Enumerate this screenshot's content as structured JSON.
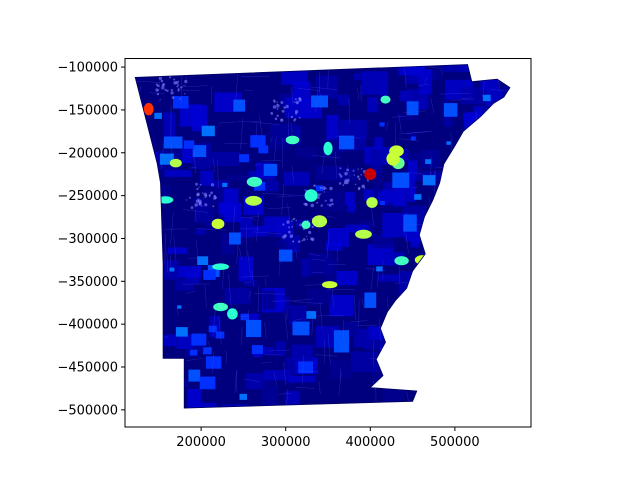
{
  "chart_data": {
    "type": "choropleth-map",
    "title": "",
    "xlabel": "",
    "ylabel": "",
    "xlim": [
      110000,
      590000
    ],
    "ylim": [
      -520000,
      -90000
    ],
    "x_ticks": [
      200000,
      300000,
      400000,
      500000
    ],
    "y_ticks": [
      -100000,
      -150000,
      -200000,
      -250000,
      -300000,
      -350000,
      -400000,
      -450000,
      -500000
    ],
    "x_tick_labels": [
      "200000",
      "300000",
      "400000",
      "500000"
    ],
    "y_tick_labels": [
      "−100000",
      "−150000",
      "−200000",
      "−250000",
      "−300000",
      "−350000",
      "−400000",
      "−450000",
      "−500000"
    ],
    "grid": false,
    "legend": "none",
    "colormap": "jet",
    "base_fill": "#00007f",
    "region_outline": [
      [
        122000,
        -112000
      ],
      [
        515000,
        -97000
      ],
      [
        520000,
        -117000
      ],
      [
        550000,
        -114000
      ],
      [
        565000,
        -124000
      ],
      [
        558000,
        -135000
      ],
      [
        546000,
        -142000
      ],
      [
        530000,
        -158000
      ],
      [
        510000,
        -175000
      ],
      [
        500000,
        -192000
      ],
      [
        487000,
        -213000
      ],
      [
        482000,
        -235000
      ],
      [
        474000,
        -255000
      ],
      [
        464000,
        -275000
      ],
      [
        458000,
        -296000
      ],
      [
        465000,
        -318000
      ],
      [
        450000,
        -338000
      ],
      [
        443000,
        -358000
      ],
      [
        430000,
        -372000
      ],
      [
        420000,
        -386000
      ],
      [
        412000,
        -405000
      ],
      [
        418000,
        -421000
      ],
      [
        407000,
        -441000
      ],
      [
        415000,
        -460000
      ],
      [
        400000,
        -474000
      ],
      [
        455000,
        -478000
      ],
      [
        450000,
        -490000
      ],
      [
        180000,
        -498000
      ],
      [
        180000,
        -440000
      ],
      [
        155000,
        -440000
      ],
      [
        155000,
        -330000
      ],
      [
        152000,
        -235000
      ],
      [
        148000,
        -212000
      ]
    ],
    "highlighted_areas": [
      {
        "x": 400000,
        "y": -225000,
        "color": "#c80000"
      },
      {
        "x": 138000,
        "y": -149000,
        "color": "#ff3000"
      },
      {
        "x": 402000,
        "y": -258000,
        "color": "#b4ff4a"
      },
      {
        "x": 220000,
        "y": -283000,
        "color": "#c8ff37"
      },
      {
        "x": 223000,
        "y": -333000,
        "color": "#29ffd0"
      },
      {
        "x": 462000,
        "y": -325000,
        "color": "#c8ff37"
      },
      {
        "x": 433000,
        "y": -212000,
        "color": "#66ff90"
      },
      {
        "x": 431000,
        "y": -198000,
        "color": "#c8ff37"
      },
      {
        "x": 262000,
        "y": -256000,
        "color": "#b4ff4a"
      },
      {
        "x": 263000,
        "y": -234000,
        "color": "#40ffc0"
      },
      {
        "x": 324000,
        "y": -284000,
        "color": "#40ffc0"
      },
      {
        "x": 352000,
        "y": -354000,
        "color": "#c8ff37"
      },
      {
        "x": 418000,
        "y": -138000,
        "color": "#40ffc0"
      },
      {
        "x": 223000,
        "y": -380000,
        "color": "#40ffc0"
      },
      {
        "x": 237000,
        "y": -388000,
        "color": "#29ffd0"
      },
      {
        "x": 142000,
        "y": -247000,
        "color": "#33ffcc"
      },
      {
        "x": 340000,
        "y": -280000,
        "color": "#b4ff4a"
      },
      {
        "x": 427000,
        "y": -207000,
        "color": "#c8ff37"
      },
      {
        "x": 158000,
        "y": -255000,
        "color": "#29ffd0"
      },
      {
        "x": 170000,
        "y": -212000,
        "color": "#b4ff4a"
      },
      {
        "x": 437000,
        "y": -326000,
        "color": "#40ffc0"
      },
      {
        "x": 392000,
        "y": -295000,
        "color": "#b4ff4a"
      },
      {
        "x": 330000,
        "y": -250000,
        "color": "#29ffd0"
      },
      {
        "x": 350000,
        "y": -195000,
        "color": "#29ffd0"
      },
      {
        "x": 308000,
        "y": -185000,
        "color": "#40ffc0"
      }
    ],
    "mid_blue_areas": [
      {
        "x": 167000,
        "y": -188000,
        "w": 22000,
        "h": 14000
      },
      {
        "x": 340000,
        "y": -140000,
        "w": 20000,
        "h": 14000
      },
      {
        "x": 372000,
        "y": -188000,
        "w": 18000,
        "h": 16000
      },
      {
        "x": 436000,
        "y": -232000,
        "w": 20000,
        "h": 18000
      },
      {
        "x": 447000,
        "y": -282000,
        "w": 16000,
        "h": 20000
      },
      {
        "x": 318000,
        "y": -405000,
        "w": 20000,
        "h": 16000
      },
      {
        "x": 366000,
        "y": -420000,
        "w": 18000,
        "h": 26000
      },
      {
        "x": 262000,
        "y": -405000,
        "w": 18000,
        "h": 20000
      },
      {
        "x": 198000,
        "y": -198000,
        "w": 16000,
        "h": 14000
      },
      {
        "x": 495000,
        "y": -150000,
        "w": 16000,
        "h": 16000
      },
      {
        "x": 450000,
        "y": -148000,
        "w": 14000,
        "h": 16000
      },
      {
        "x": 282000,
        "y": -220000,
        "w": 16000,
        "h": 14000
      },
      {
        "x": 215000,
        "y": -338000,
        "w": 14000,
        "h": 14000
      },
      {
        "x": 400000,
        "y": -372000,
        "w": 14000,
        "h": 18000
      },
      {
        "x": 245000,
        "y": -145000,
        "w": 14000,
        "h": 14000
      },
      {
        "x": 505000,
        "y": -240000,
        "w": 14000,
        "h": 14000
      },
      {
        "x": 300000,
        "y": -320000,
        "w": 16000,
        "h": 14000
      },
      {
        "x": 192000,
        "y": -460000,
        "w": 14000,
        "h": 14000
      },
      {
        "x": 430000,
        "y": -440000,
        "w": 12000,
        "h": 14000
      },
      {
        "x": 240000,
        "y": -300000,
        "w": 14000,
        "h": 14000
      }
    ]
  }
}
